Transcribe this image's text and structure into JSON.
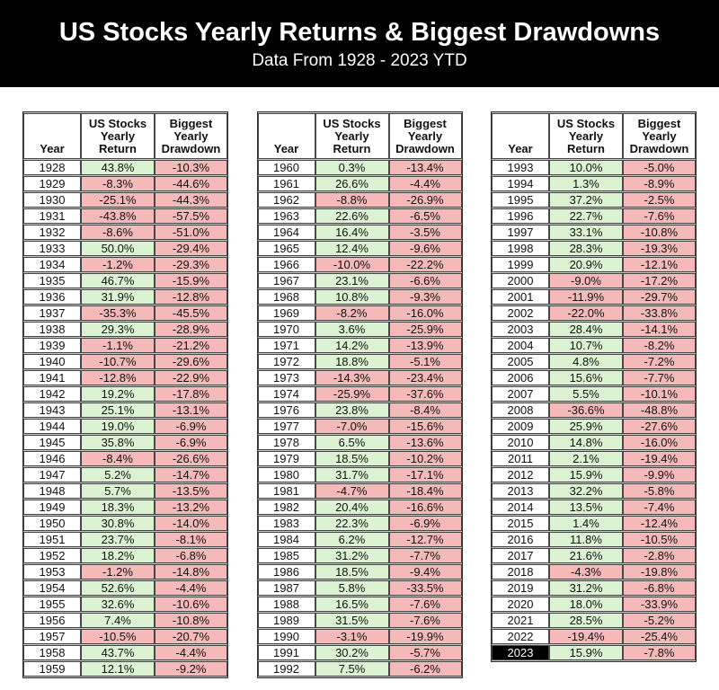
{
  "colors": {
    "header_bg": "#000000",
    "header_text": "#ffffff",
    "positive_bg": "#dcf3d3",
    "negative_bg": "#f5b9b9",
    "highlight_bg": "#000000",
    "highlight_text": "#ffffff",
    "grid_line": "#474747",
    "row_gap": "#c4c4c4"
  },
  "chart_data": {
    "type": "table",
    "title": "US Stocks Yearly Returns & Biggest Drawdowns",
    "subtitle": "Data From 1928 - 2023 YTD",
    "columns": [
      "Year",
      "US Stocks Yearly Return",
      "Biggest Yearly Drawdown"
    ],
    "highlight_year": "2023",
    "tables": [
      {
        "name": "1928-1959",
        "rows": [
          [
            "1928",
            "43.8%",
            "-10.3%"
          ],
          [
            "1929",
            "-8.3%",
            "-44.6%"
          ],
          [
            "1930",
            "-25.1%",
            "-44.3%"
          ],
          [
            "1931",
            "-43.8%",
            "-57.5%"
          ],
          [
            "1932",
            "-8.6%",
            "-51.0%"
          ],
          [
            "1933",
            "50.0%",
            "-29.4%"
          ],
          [
            "1934",
            "-1.2%",
            "-29.3%"
          ],
          [
            "1935",
            "46.7%",
            "-15.9%"
          ],
          [
            "1936",
            "31.9%",
            "-12.8%"
          ],
          [
            "1937",
            "-35.3%",
            "-45.5%"
          ],
          [
            "1938",
            "29.3%",
            "-28.9%"
          ],
          [
            "1939",
            "-1.1%",
            "-21.2%"
          ],
          [
            "1940",
            "-10.7%",
            "-29.6%"
          ],
          [
            "1941",
            "-12.8%",
            "-22.9%"
          ],
          [
            "1942",
            "19.2%",
            "-17.8%"
          ],
          [
            "1943",
            "25.1%",
            "-13.1%"
          ],
          [
            "1944",
            "19.0%",
            "-6.9%"
          ],
          [
            "1945",
            "35.8%",
            "-6.9%"
          ],
          [
            "1946",
            "-8.4%",
            "-26.6%"
          ],
          [
            "1947",
            "5.2%",
            "-14.7%"
          ],
          [
            "1948",
            "5.7%",
            "-13.5%"
          ],
          [
            "1949",
            "18.3%",
            "-13.2%"
          ],
          [
            "1950",
            "30.8%",
            "-14.0%"
          ],
          [
            "1951",
            "23.7%",
            "-8.1%"
          ],
          [
            "1952",
            "18.2%",
            "-6.8%"
          ],
          [
            "1953",
            "-1.2%",
            "-14.8%"
          ],
          [
            "1954",
            "52.6%",
            "-4.4%"
          ],
          [
            "1955",
            "32.6%",
            "-10.6%"
          ],
          [
            "1956",
            "7.4%",
            "-10.8%"
          ],
          [
            "1957",
            "-10.5%",
            "-20.7%"
          ],
          [
            "1958",
            "43.7%",
            "-4.4%"
          ],
          [
            "1959",
            "12.1%",
            "-9.2%"
          ]
        ]
      },
      {
        "name": "1960-1992",
        "rows": [
          [
            "1960",
            "0.3%",
            "-13.4%"
          ],
          [
            "1961",
            "26.6%",
            "-4.4%"
          ],
          [
            "1962",
            "-8.8%",
            "-26.9%"
          ],
          [
            "1963",
            "22.6%",
            "-6.5%"
          ],
          [
            "1964",
            "16.4%",
            "-3.5%"
          ],
          [
            "1965",
            "12.4%",
            "-9.6%"
          ],
          [
            "1966",
            "-10.0%",
            "-22.2%"
          ],
          [
            "1967",
            "23.1%",
            "-6.6%"
          ],
          [
            "1968",
            "10.8%",
            "-9.3%"
          ],
          [
            "1969",
            "-8.2%",
            "-16.0%"
          ],
          [
            "1970",
            "3.6%",
            "-25.9%"
          ],
          [
            "1971",
            "14.2%",
            "-13.9%"
          ],
          [
            "1972",
            "18.8%",
            "-5.1%"
          ],
          [
            "1973",
            "-14.3%",
            "-23.4%"
          ],
          [
            "1974",
            "-25.9%",
            "-37.6%"
          ],
          [
            "1976",
            "23.8%",
            "-8.4%"
          ],
          [
            "1977",
            "-7.0%",
            "-15.6%"
          ],
          [
            "1978",
            "6.5%",
            "-13.6%"
          ],
          [
            "1979",
            "18.5%",
            "-10.2%"
          ],
          [
            "1980",
            "31.7%",
            "-17.1%"
          ],
          [
            "1981",
            "-4.7%",
            "-18.4%"
          ],
          [
            "1982",
            "20.4%",
            "-16.6%"
          ],
          [
            "1983",
            "22.3%",
            "-6.9%"
          ],
          [
            "1984",
            "6.2%",
            "-12.7%"
          ],
          [
            "1985",
            "31.2%",
            "-7.7%"
          ],
          [
            "1986",
            "18.5%",
            "-9.4%"
          ],
          [
            "1987",
            "5.8%",
            "-33.5%"
          ],
          [
            "1988",
            "16.5%",
            "-7.6%"
          ],
          [
            "1989",
            "31.5%",
            "-7.6%"
          ],
          [
            "1990",
            "-3.1%",
            "-19.9%"
          ],
          [
            "1991",
            "30.2%",
            "-5.7%"
          ],
          [
            "1992",
            "7.5%",
            "-6.2%"
          ]
        ]
      },
      {
        "name": "1993-2023",
        "rows": [
          [
            "1993",
            "10.0%",
            "-5.0%"
          ],
          [
            "1994",
            "1.3%",
            "-8.9%"
          ],
          [
            "1995",
            "37.2%",
            "-2.5%"
          ],
          [
            "1996",
            "22.7%",
            "-7.6%"
          ],
          [
            "1997",
            "33.1%",
            "-10.8%"
          ],
          [
            "1998",
            "28.3%",
            "-19.3%"
          ],
          [
            "1999",
            "20.9%",
            "-12.1%"
          ],
          [
            "2000",
            "-9.0%",
            "-17.2%"
          ],
          [
            "2001",
            "-11.9%",
            "-29.7%"
          ],
          [
            "2002",
            "-22.0%",
            "-33.8%"
          ],
          [
            "2003",
            "28.4%",
            "-14.1%"
          ],
          [
            "2004",
            "10.7%",
            "-8.2%"
          ],
          [
            "2005",
            "4.8%",
            "-7.2%"
          ],
          [
            "2006",
            "15.6%",
            "-7.7%"
          ],
          [
            "2007",
            "5.5%",
            "-10.1%"
          ],
          [
            "2008",
            "-36.6%",
            "-48.8%"
          ],
          [
            "2009",
            "25.9%",
            "-27.6%"
          ],
          [
            "2010",
            "14.8%",
            "-16.0%"
          ],
          [
            "2011",
            "2.1%",
            "-19.4%"
          ],
          [
            "2012",
            "15.9%",
            "-9.9%"
          ],
          [
            "2013",
            "32.2%",
            "-5.8%"
          ],
          [
            "2014",
            "13.5%",
            "-7.4%"
          ],
          [
            "2015",
            "1.4%",
            "-12.4%"
          ],
          [
            "2016",
            "11.8%",
            "-10.5%"
          ],
          [
            "2017",
            "21.6%",
            "-2.8%"
          ],
          [
            "2018",
            "-4.3%",
            "-19.8%"
          ],
          [
            "2019",
            "31.2%",
            "-6.8%"
          ],
          [
            "2020",
            "18.0%",
            "-33.9%"
          ],
          [
            "2021",
            "28.5%",
            "-5.2%"
          ],
          [
            "2022",
            "-19.4%",
            "-25.4%"
          ],
          [
            "2023",
            "15.9%",
            "-7.8%"
          ]
        ]
      }
    ]
  }
}
